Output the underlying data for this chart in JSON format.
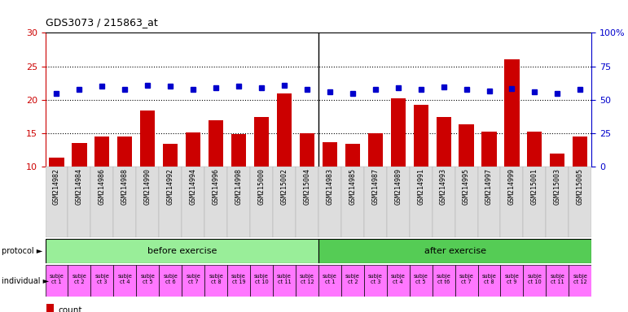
{
  "title": "GDS3073 / 215863_at",
  "samples": [
    "GSM214982",
    "GSM214984",
    "GSM214986",
    "GSM214988",
    "GSM214990",
    "GSM214992",
    "GSM214994",
    "GSM214996",
    "GSM214998",
    "GSM215000",
    "GSM215002",
    "GSM215004",
    "GSM214983",
    "GSM214985",
    "GSM214987",
    "GSM214989",
    "GSM214991",
    "GSM214993",
    "GSM214995",
    "GSM214997",
    "GSM214999",
    "GSM215001",
    "GSM215003",
    "GSM215005"
  ],
  "counts": [
    11.4,
    13.6,
    14.5,
    14.5,
    18.4,
    13.4,
    15.1,
    16.9,
    14.9,
    17.5,
    21.0,
    15.0,
    13.7,
    13.4,
    15.0,
    20.2,
    19.2,
    17.5,
    16.4,
    15.3,
    26.1,
    15.3,
    12.0,
    14.5
  ],
  "percentile_right": [
    55.0,
    57.5,
    60.0,
    57.5,
    61.0,
    60.5,
    57.5,
    59.0,
    60.0,
    59.0,
    61.0,
    57.5,
    56.0,
    55.0,
    57.5,
    59.0,
    57.5,
    59.5,
    57.5,
    56.5,
    58.5,
    56.0,
    55.0,
    57.5
  ],
  "bar_color": "#cc0000",
  "dot_color": "#0000cc",
  "protocol_before": "before exercise",
  "protocol_after": "after exercise",
  "protocol_before_color": "#99ee99",
  "protocol_after_color": "#55cc55",
  "individual_color": "#ff77ff",
  "individual_labels_before": [
    "subje\nct 1",
    "subje\nct 2",
    "subje\nct 3",
    "subje\nct 4",
    "subje\nct 5",
    "subje\nct 6",
    "subje\nct 7",
    "subje\nct 8",
    "subje\nct 19",
    "subje\nct 10",
    "subje\nct 11",
    "subje\nct 12"
  ],
  "individual_labels_after": [
    "subje\nct 1",
    "subje\nct 2",
    "subje\nct 3",
    "subje\nct 4",
    "subje\nct 5",
    "subje\nct t6",
    "subje\nct 7",
    "subje\nct 8",
    "subje\nct 9",
    "subje\nct 10",
    "subje\nct 11",
    "subje\nct 12"
  ],
  "ylim_left": [
    10,
    30
  ],
  "ylim_right": [
    0,
    100
  ],
  "yticks_left": [
    10,
    15,
    20,
    25,
    30
  ],
  "yticks_right": [
    0,
    25,
    50,
    75,
    100
  ],
  "n_before": 12,
  "n_after": 12
}
